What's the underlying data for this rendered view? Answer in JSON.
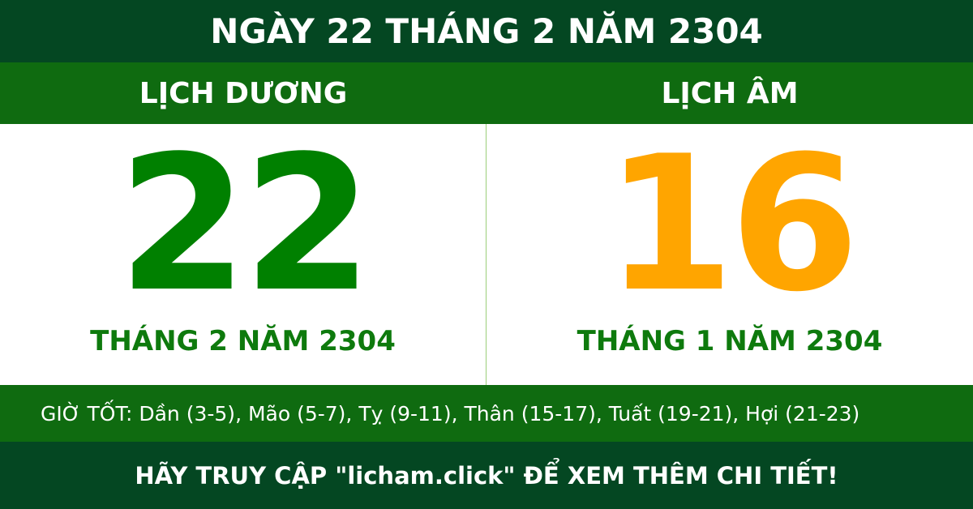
{
  "title": "NGÀY 22 THÁNG 2 NĂM 2304",
  "solar": {
    "label": "LỊCH DƯƠNG",
    "day": "22",
    "month_year": "THÁNG 2 NĂM 2304",
    "color": "#008000"
  },
  "lunar": {
    "label": "LỊCH ÂM",
    "day": "16",
    "month_year": "THÁNG 1 NĂM 2304",
    "color": "#ffa500"
  },
  "good_hours": "GIỜ TỐT: Dần (3-5), Mão (5-7), Tỵ (9-11), Thân (15-17), Tuất (19-21), Hợi (21-23)",
  "footer": "HÃY TRUY CẬP \"licham.click\" ĐỂ XEM THÊM CHI TIẾT!"
}
